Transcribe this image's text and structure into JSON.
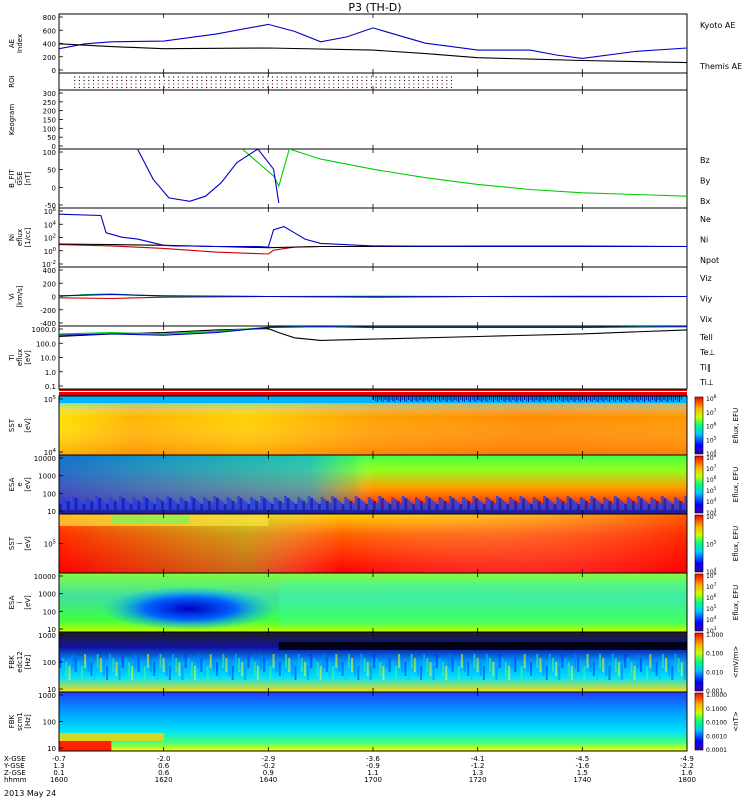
{
  "title": "P3 (TH-D)",
  "date_label": "2013 May 24",
  "chart_data": {
    "type": "line",
    "time_range": [
      1600,
      1800
    ],
    "time_ticks": [
      "1600",
      "1620",
      "1640",
      "1700",
      "1720",
      "1740",
      "1800"
    ],
    "time_positions_min": [
      0,
      20,
      40,
      60,
      80,
      100,
      120
    ],
    "ephemeris_labels": [
      "X-GSE",
      "Y-GSE",
      "Z-GSE",
      "hhmm"
    ],
    "ephemeris": {
      "x": [
        "-0.7",
        "-2.0",
        "-2.9",
        "-3.6",
        "-4.1",
        "-4.5",
        "-4.9"
      ],
      "y": [
        "1.3",
        "0.6",
        "-0.2",
        "-0.9",
        "-1.2",
        "-1.6",
        "-2.2"
      ],
      "z": [
        "0.1",
        "0.6",
        "0.9",
        "1.1",
        "1.3",
        "1.5",
        "1.6"
      ]
    },
    "panels": [
      {
        "id": "ae",
        "ylabel": "AE Index",
        "yticks": [
          "0",
          "200",
          "400",
          "600",
          "800"
        ],
        "ylim": [
          0,
          850
        ],
        "series": [
          {
            "name": "Kyoto AE",
            "color": "#0000cc",
            "t": [
              0,
              5,
              10,
              20,
              30,
              40,
              45,
              50,
              55,
              60,
              70,
              75,
              80,
              90,
              95,
              100,
              110,
              120
            ],
            "v": [
              350,
              420,
              450,
              460,
              560,
              700,
              600,
              450,
              520,
              650,
              430,
              380,
              330,
              330,
              260,
              210,
              310,
              360
            ]
          },
          {
            "name": "Themis AE",
            "color": "#000000",
            "t": [
              0,
              10,
              20,
              40,
              60,
              70,
              80,
              90,
              100,
              120
            ],
            "v": [
              420,
              380,
              350,
              360,
              330,
              280,
              220,
              200,
              180,
              150
            ]
          }
        ]
      },
      {
        "id": "roi",
        "ylabel": "ROI"
      },
      {
        "id": "keogram",
        "ylabel": "Keogram",
        "yticks": [
          "0",
          "50",
          "100",
          "150",
          "200",
          "250",
          "300"
        ],
        "ylim": [
          0,
          300
        ]
      },
      {
        "id": "bfit",
        "ylabel": "B_FIT GSE [nT]",
        "yticks": [
          "-50",
          "0",
          "50",
          "100"
        ],
        "ylim": [
          -75,
          100
        ],
        "series": [
          {
            "name": "Bz",
            "color": "#cc0000",
            "t": [],
            "v": []
          },
          {
            "name": "By",
            "color": "#00cc00",
            "t": [
              35,
              38,
              41,
              42,
              44,
              50,
              60,
              70,
              80,
              90,
              100,
              110,
              120
            ],
            "v": [
              100,
              60,
              20,
              -10,
              100,
              70,
              40,
              15,
              -5,
              -20,
              -30,
              -35,
              -40
            ]
          },
          {
            "name": "Bx",
            "color": "#0000cc",
            "t": [
              15,
              18,
              21,
              25,
              28,
              31,
              34,
              38,
              41,
              42
            ],
            "v": [
              100,
              10,
              -45,
              -55,
              -40,
              0,
              60,
              100,
              40,
              -60
            ]
          }
        ]
      },
      {
        "id": "ni",
        "ylabel": "Ni eflux [1/cc]",
        "yticks": [
          "10^-2",
          "10^0",
          "10^2",
          "10^4",
          "10^6"
        ],
        "ylim": [
          -3,
          6.5
        ],
        "series": [
          {
            "name": "Ne",
            "color": "#cc0000",
            "t": [
              0,
              10,
              20,
              30,
              40,
              41,
              45,
              50,
              60,
              80,
              100,
              120
            ],
            "v": [
              0.6,
              0.4,
              0,
              -0.6,
              -0.9,
              -0.3,
              0.2,
              0.3,
              0.3,
              0.4,
              0.4,
              0.3
            ]
          },
          {
            "name": "Ni",
            "color": "#000000",
            "t": [
              0,
              10,
              20,
              30,
              40,
              50,
              60,
              80,
              100,
              120
            ],
            "v": [
              0.7,
              0.6,
              0.5,
              0.3,
              0.1,
              0.3,
              0.3,
              0.3,
              0.3,
              0.3
            ]
          },
          {
            "name": "Npot",
            "color": "#0000cc",
            "t": [
              0,
              8,
              9,
              12,
              15,
              20,
              22,
              25,
              30,
              35,
              38,
              40,
              41,
              43,
              45,
              47,
              50,
              60,
              80,
              100,
              120
            ],
            "v": [
              5.5,
              5.3,
              2.5,
              1.8,
              1.5,
              0.5,
              0.4,
              0.4,
              0.3,
              0.3,
              0.3,
              0.2,
              3,
              3.5,
              2.5,
              1.5,
              0.8,
              0.4,
              0.3,
              0.3,
              0.3
            ]
          }
        ]
      },
      {
        "id": "vi",
        "ylabel": "Vi [km/s]",
        "yticks": [
          "-400",
          "-200",
          "0",
          "200",
          "400"
        ],
        "ylim": [
          -450,
          450
        ],
        "series": [
          {
            "name": "Viz",
            "color": "#cc0000",
            "t": [
              0,
              10,
              20,
              40,
              60,
              80,
              100,
              120
            ],
            "v": [
              -20,
              -30,
              -10,
              0,
              -10,
              0,
              -5,
              0
            ]
          },
          {
            "name": "Viy",
            "color": "#00cc00",
            "t": [
              0,
              5,
              10,
              15,
              20,
              40,
              60,
              80,
              100,
              120
            ],
            "v": [
              0,
              30,
              40,
              20,
              5,
              0,
              5,
              0,
              5,
              0
            ]
          },
          {
            "name": "Vix",
            "color": "#0000cc",
            "t": [
              0,
              5,
              10,
              20,
              40,
              60,
              80,
              100,
              120
            ],
            "v": [
              10,
              20,
              30,
              10,
              0,
              -5,
              0,
              0,
              0
            ]
          }
        ]
      },
      {
        "id": "ti",
        "ylabel": "Ti eflux [eV]",
        "yticks": [
          "0.1",
          "1.0",
          "10.0",
          "100.0",
          "1000.0"
        ],
        "ylim": [
          -1.3,
          3.5
        ],
        "series": [
          {
            "name": "Tell",
            "color": "#000000",
            "t": [
              0,
              10,
              20,
              30,
              40,
              42,
              45,
              50,
              60,
              80,
              100,
              120
            ],
            "v": [
              2.7,
              2.9,
              3.0,
              3.2,
              3.3,
              3.0,
              2.6,
              2.4,
              2.5,
              2.7,
              2.9,
              3.2
            ]
          },
          {
            "name": "Te⊥",
            "color": "#cc0000",
            "t": [],
            "v": []
          },
          {
            "name": "Ti‖",
            "color": "#00cc00",
            "t": [
              0,
              10,
              20,
              30,
              40,
              50,
              60,
              80,
              100,
              120
            ],
            "v": [
              2.9,
              3.0,
              2.9,
              3.1,
              3.4,
              3.5,
              3.4,
              3.4,
              3.4,
              3.5
            ]
          },
          {
            "name": "Ti⊥",
            "color": "#0000cc",
            "t": [
              0,
              10,
              20,
              30,
              40,
              50,
              60,
              80,
              100,
              120
            ],
            "v": [
              2.8,
              2.9,
              2.8,
              3.0,
              3.4,
              3.45,
              3.4,
              3.4,
              3.4,
              3.45
            ]
          }
        ]
      },
      {
        "id": "sst_e",
        "ylabel": "SST e [eV]",
        "yticks": [
          "10^4",
          "10^5"
        ],
        "cbar_label": "Eflux, EFU",
        "cbar_ticks": [
          "10^4",
          "10^5",
          "10^6",
          "10^7",
          "10^8"
        ]
      },
      {
        "id": "esa_e",
        "ylabel": "ESA e [eV]",
        "yticks": [
          "10",
          "100",
          "1000",
          "10000"
        ],
        "cbar_label": "Eflux, EFU",
        "cbar_ticks": [
          "10^3",
          "10^4",
          "10^5",
          "10^6",
          "10^7",
          "10^8"
        ]
      },
      {
        "id": "sst_i",
        "ylabel": "SST i [eV]",
        "yticks": [
          "10^5"
        ],
        "cbar_label": "Eflux, EFU",
        "cbar_ticks": [
          "10^4",
          "10^5",
          "10^6"
        ]
      },
      {
        "id": "esa_i",
        "ylabel": "ESA i [eV]",
        "yticks": [
          "10",
          "100",
          "1000",
          "10000"
        ],
        "cbar_label": "Eflux, EFU",
        "cbar_ticks": [
          "10^3",
          "10^4",
          "10^5",
          "10^6",
          "10^7",
          "10^8"
        ]
      },
      {
        "id": "fbk_e",
        "ylabel": "FBK edc12 [Hz]",
        "yticks": [
          "10",
          "100",
          "1000"
        ],
        "cbar_label": "<mV/m>",
        "cbar_ticks": [
          "0.001",
          "0.010",
          "0.100",
          "1.000"
        ]
      },
      {
        "id": "fbk_b",
        "ylabel": "FBK scm1 [Hz]",
        "yticks": [
          "10",
          "100",
          "1000"
        ],
        "cbar_label": "<nT>",
        "cbar_ticks": [
          "0.0001",
          "0.0010",
          "0.0100",
          "0.1000",
          "1.0000"
        ]
      }
    ]
  }
}
